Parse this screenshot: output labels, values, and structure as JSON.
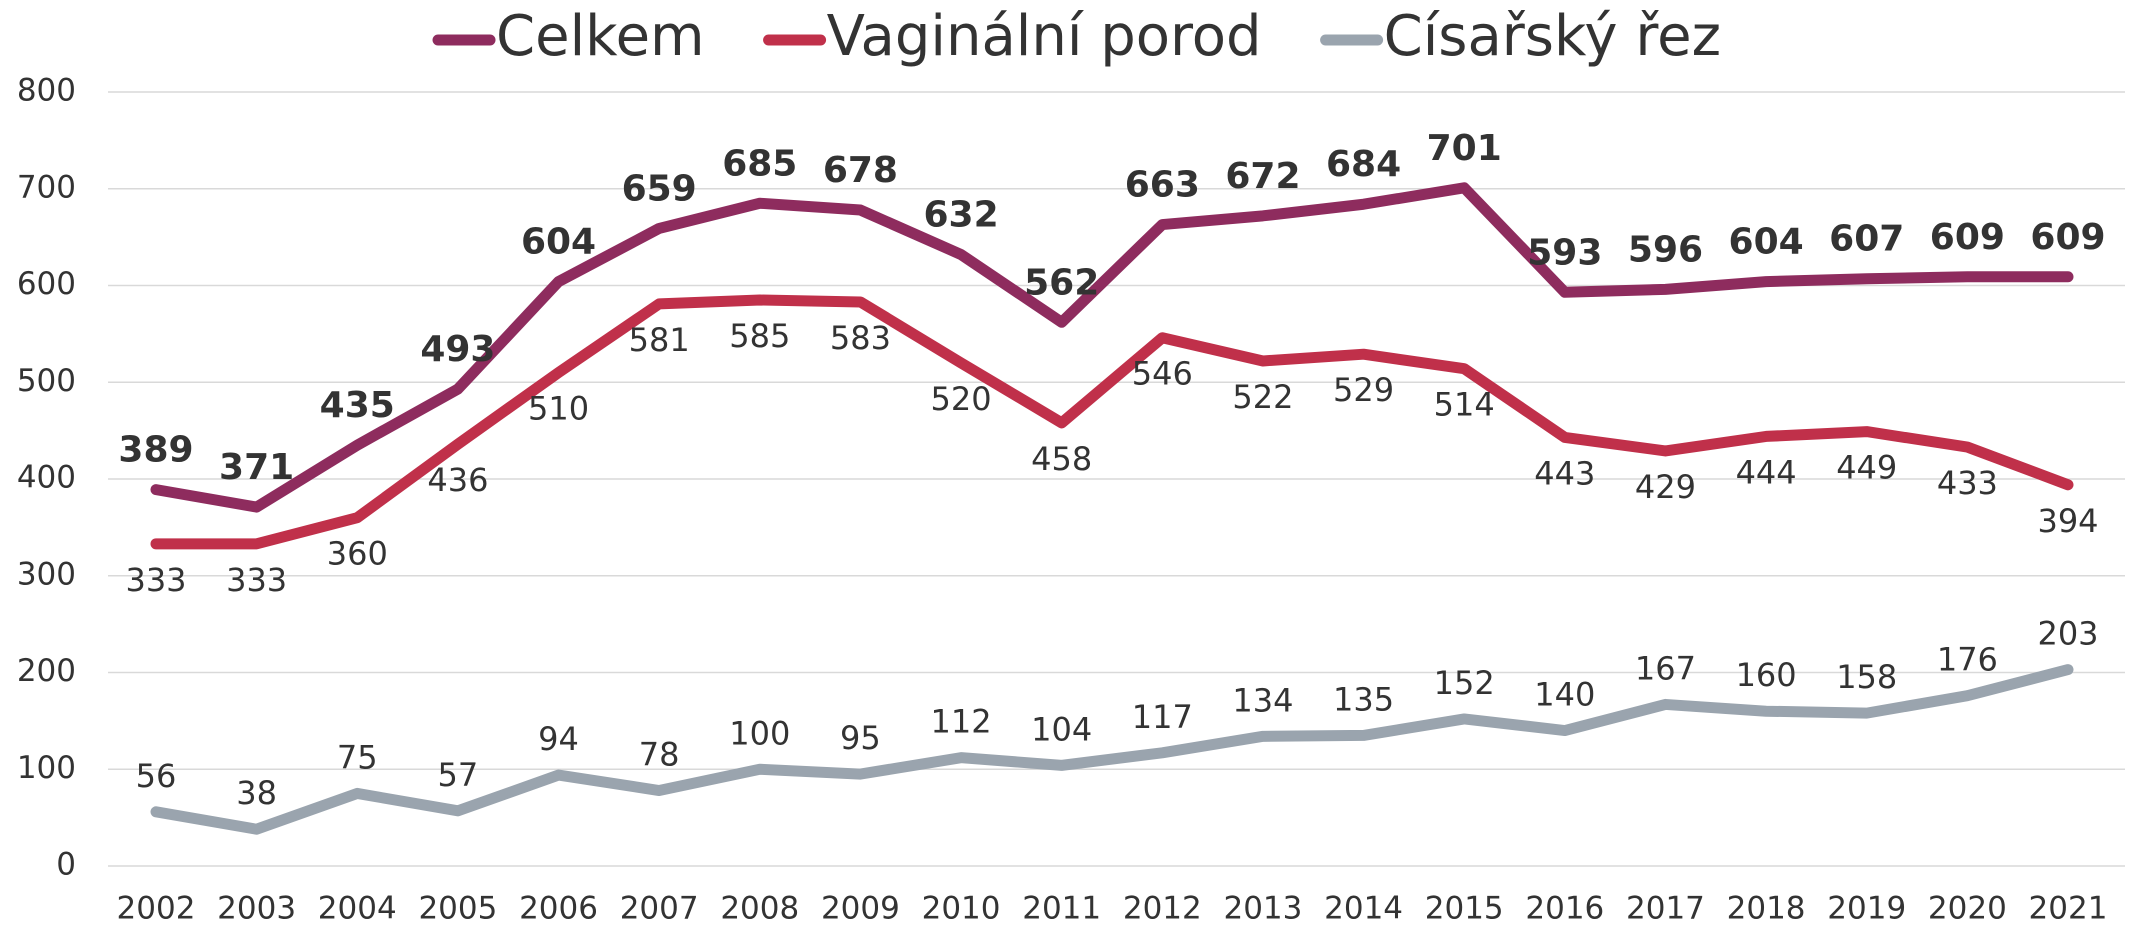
{
  "chart_data": {
    "type": "line",
    "categories": [
      "2002",
      "2003",
      "2004",
      "2005",
      "2006",
      "2007",
      "2008",
      "2009",
      "2010",
      "2011",
      "2012",
      "2013",
      "2014",
      "2015",
      "2016",
      "2017",
      "2018",
      "2019",
      "2020",
      "2021"
    ],
    "series": [
      {
        "name": "Celkem",
        "color": "#8e2c5e",
        "values": [
          389,
          371,
          435,
          493,
          604,
          659,
          685,
          678,
          632,
          562,
          663,
          672,
          684,
          701,
          593,
          596,
          604,
          607,
          609,
          609
        ]
      },
      {
        "name": "Vaginální porod",
        "color": "#c0304a",
        "values": [
          333,
          333,
          360,
          436,
          510,
          581,
          585,
          583,
          520,
          458,
          546,
          522,
          529,
          514,
          443,
          429,
          444,
          449,
          433,
          394
        ]
      },
      {
        "name": "Císařský řez",
        "color": "#9aa4ae",
        "values": [
          56,
          38,
          75,
          57,
          94,
          78,
          100,
          95,
          112,
          104,
          117,
          134,
          135,
          152,
          140,
          167,
          160,
          158,
          176,
          203
        ]
      }
    ],
    "ylim": [
      0,
      800
    ],
    "yticks": [
      0,
      100,
      200,
      300,
      400,
      500,
      600,
      700,
      800
    ],
    "grid": true,
    "legend": "top"
  }
}
